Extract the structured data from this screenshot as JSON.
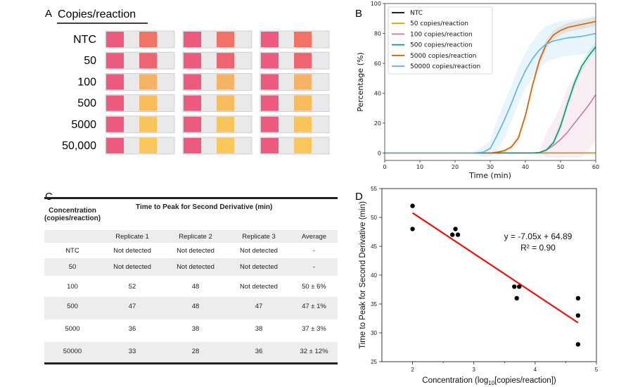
{
  "panel_labels": {
    "a": "A",
    "b": "B",
    "c": "C",
    "d": "D"
  },
  "panel_a": {
    "header": "Copies/reaction",
    "pad1_color": "#ec5a7e",
    "rows": [
      {
        "label": "NTC",
        "pad2_color": "#f07366"
      },
      {
        "label": "50",
        "pad2_color": "#ee6470"
      },
      {
        "label": "100",
        "pad2_color": "#f6b365"
      },
      {
        "label": "500",
        "pad2_color": "#f8bc5c"
      },
      {
        "label": "5000",
        "pad2_color": "#f8c55a"
      },
      {
        "label": "50,000",
        "pad2_color": "#f9c75c"
      }
    ]
  },
  "chart_data": [
    {
      "type": "line",
      "panel": "B",
      "xlabel": "Time (min)",
      "ylabel": "Percentage (%)",
      "xlim": [
        0,
        60
      ],
      "ylim": [
        -5,
        100
      ],
      "xticks": [
        0,
        10,
        20,
        30,
        40,
        50,
        60
      ],
      "yticks": [
        0,
        20,
        40,
        60,
        80,
        100
      ],
      "legend_position": "top-left",
      "grid": false,
      "x": [
        0,
        5,
        10,
        15,
        20,
        25,
        28,
        30,
        32,
        34,
        36,
        38,
        40,
        42,
        44,
        46,
        48,
        50,
        52,
        54,
        56,
        58,
        60
      ],
      "series": [
        {
          "name": "NTC",
          "color": "#000000",
          "spread": 0,
          "values": [
            0,
            0,
            0,
            0,
            0,
            0,
            0,
            0,
            0,
            0,
            0,
            0,
            0,
            0,
            0,
            0,
            0,
            0,
            0,
            0,
            0,
            0,
            0
          ]
        },
        {
          "name": "50 copies/reaction",
          "color": "#e69f00",
          "spread": 0,
          "values": [
            0,
            0,
            0,
            0,
            0,
            0,
            0,
            0,
            0,
            0,
            0,
            0,
            0,
            0,
            0,
            0,
            0,
            0,
            0,
            0,
            0,
            0,
            0
          ]
        },
        {
          "name": "100 copies/reaction",
          "color": "#cc79a7",
          "spread": 30,
          "values": [
            0,
            0,
            0,
            0,
            0,
            0,
            0,
            0,
            0,
            0,
            0,
            0,
            0,
            0,
            0.3,
            2,
            5,
            9,
            14,
            20,
            26,
            32,
            39
          ]
        },
        {
          "name": "500 copies/reaction",
          "color": "#009e73",
          "spread": 3,
          "values": [
            0,
            0,
            0,
            0,
            0,
            0,
            0,
            0,
            0,
            0,
            0,
            0,
            0,
            0,
            0.3,
            2,
            7,
            18,
            33,
            47,
            58,
            65,
            71
          ]
        },
        {
          "name": "5000 copies/reaction",
          "color": "#d55e00",
          "spread": 3,
          "values": [
            0,
            0,
            0,
            0,
            0,
            0,
            0,
            0,
            0.5,
            1.5,
            4,
            10,
            25,
            45,
            62,
            73,
            79,
            82,
            84,
            85,
            86,
            87,
            88
          ]
        },
        {
          "name": "50000 copies/reaction",
          "color": "#56b4e9",
          "spread": 12,
          "values": [
            0,
            0,
            0,
            0,
            0,
            0,
            0.5,
            3,
            12,
            22,
            33,
            45,
            55,
            63,
            69,
            73,
            75,
            76,
            77,
            77.5,
            78,
            79,
            80
          ]
        }
      ]
    },
    {
      "type": "scatter",
      "panel": "D",
      "xlabel": "Concentration (log10[copies/reaction])",
      "xlabel_parts": [
        "Concentration (log",
        "10",
        "[copies/reaction])"
      ],
      "ylabel": "Time to Peak for Second Derivative (min)",
      "xlim": [
        1.5,
        5
      ],
      "ylim": [
        25,
        55
      ],
      "xticks": [
        2,
        3,
        4,
        5
      ],
      "yticks": [
        25,
        30,
        35,
        40,
        45,
        50,
        55
      ],
      "points": [
        {
          "x": 2,
          "y": 52
        },
        {
          "x": 2,
          "y": 48
        },
        {
          "x": 2.65,
          "y": 47
        },
        {
          "x": 2.7,
          "y": 48
        },
        {
          "x": 2.74,
          "y": 47
        },
        {
          "x": 3.66,
          "y": 38
        },
        {
          "x": 3.7,
          "y": 36
        },
        {
          "x": 3.74,
          "y": 38
        },
        {
          "x": 4.7,
          "y": 36
        },
        {
          "x": 4.7,
          "y": 33
        },
        {
          "x": 4.7,
          "y": 28
        }
      ],
      "point_color": "#000000",
      "fit": {
        "slope": -7.05,
        "intercept": 64.89,
        "x_range": [
          2,
          4.7
        ],
        "color": "#e8130f",
        "equation": "y = -7.05x + 64.89",
        "r2": "R² = 0.90"
      }
    }
  ],
  "table_c": {
    "header_col1": [
      "Concentration",
      "(copies/reaction)"
    ],
    "header_span": "Time to Peak for Second Derivative (min)",
    "subheaders": [
      "Replicate 1",
      "Replicate 2",
      "Replicate 3",
      "Average"
    ],
    "rows": [
      [
        "NTC",
        "Not detected",
        "Not detected",
        "Not detected",
        "-"
      ],
      [
        "50",
        "Not detected",
        "Not detected",
        "Not detected",
        "-"
      ],
      [
        "100",
        "52",
        "48",
        "Not detected",
        "50 ± 6%"
      ],
      [
        "500",
        "47",
        "48",
        "47",
        "47 ± 1%"
      ],
      [
        "5000",
        "36",
        "38",
        "38",
        "37 ± 3%"
      ],
      [
        "50000",
        "33",
        "28",
        "36",
        "32 ± 12%"
      ]
    ]
  }
}
